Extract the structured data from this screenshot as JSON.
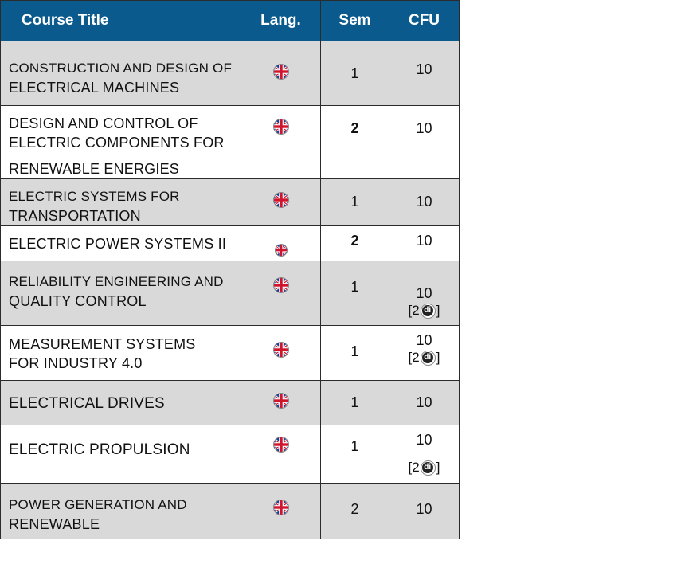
{
  "header": {
    "title": "Course Title",
    "lang": "Lang.",
    "sem": "Sem",
    "cfu": "CFU"
  },
  "colors": {
    "header_bg": "#0a5a8e",
    "row_shaded": "#d9d9d9",
    "row_plain": "#ffffff"
  },
  "flag_icon": "uk-flag-icon",
  "rows": [
    {
      "lines": [
        "CONSTRUCTION AND DESIGN OF",
        "ELECTRICAL MACHINES"
      ],
      "sem": "1",
      "cfu": "10",
      "extra": ""
    },
    {
      "lines": [
        "DESIGN AND CONTROL OF",
        "ELECTRIC COMPONENTS FOR",
        "RENEWABLE ENERGIES"
      ],
      "sem": "2",
      "cfu": "10",
      "extra": ""
    },
    {
      "lines": [
        "ELECTRIC SYSTEMS FOR",
        "TRANSPORTATION"
      ],
      "sem": "1",
      "cfu": "10",
      "extra": ""
    },
    {
      "lines": [
        "ELECTRIC POWER SYSTEMS II"
      ],
      "sem": "2",
      "cfu": "10",
      "extra": ""
    },
    {
      "lines": [
        "RELIABILITY ENGINEERING AND",
        "QUALITY CONTROL"
      ],
      "sem": "1",
      "cfu": "10",
      "extra": "[2"
    },
    {
      "lines": [
        "MEASUREMENT SYSTEMS",
        "FOR INDUSTRY 4.0"
      ],
      "sem": "1",
      "cfu": "10",
      "extra": "[2"
    },
    {
      "lines": [
        "ELECTRICAL DRIVES"
      ],
      "sem": "1",
      "cfu": "10",
      "extra": ""
    },
    {
      "lines": [
        "ELECTRIC PROPULSION"
      ],
      "sem": "1",
      "cfu": "10",
      "extra": "[2"
    },
    {
      "lines": [
        "POWER GENERATION AND",
        "RENEWABLE"
      ],
      "sem": "2",
      "cfu": "10",
      "extra": ""
    }
  ],
  "badge": {
    "text": "di",
    "close": "]"
  }
}
